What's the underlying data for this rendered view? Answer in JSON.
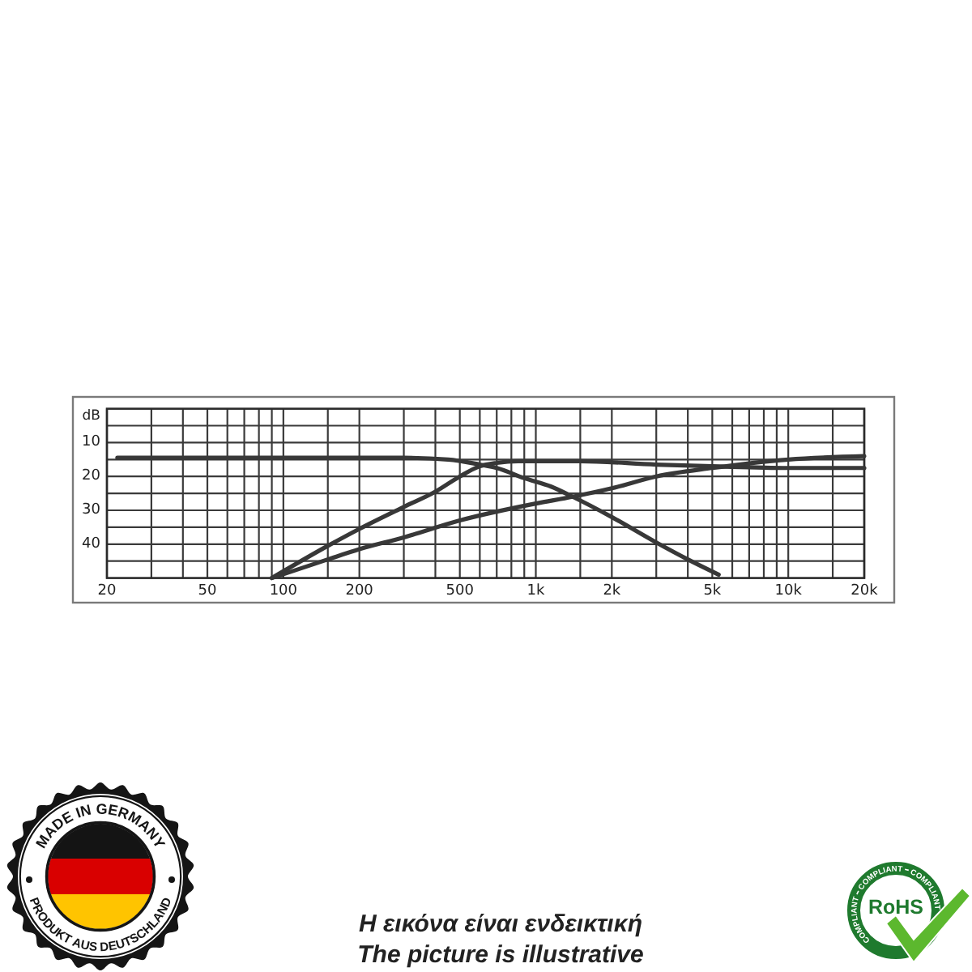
{
  "chart_data": {
    "type": "line",
    "ylabel": "dB",
    "log": "x",
    "grid": true,
    "line_style": "solid",
    "xlim": [
      20,
      20000
    ],
    "ylim": [
      50,
      0
    ],
    "xticks": [
      20,
      {
        "value": 30,
        "label": null
      },
      {
        "value": 40,
        "label": null
      },
      50,
      {
        "value": 60,
        "label": null
      },
      {
        "value": 70,
        "label": null
      },
      {
        "value": 80,
        "label": null
      },
      {
        "value": 90,
        "label": null
      },
      100,
      {
        "value": 150,
        "label": null
      },
      200,
      {
        "value": 300,
        "label": null
      },
      {
        "value": 400,
        "label": null
      },
      500,
      {
        "value": 600,
        "label": null
      },
      {
        "value": 700,
        "label": null
      },
      {
        "value": 800,
        "label": null
      },
      {
        "value": 900,
        "label": null
      },
      {
        "value": 1000,
        "label": "1k"
      },
      {
        "value": 1500,
        "label": null
      },
      {
        "value": 2000,
        "label": "2k"
      },
      {
        "value": 3000,
        "label": null
      },
      {
        "value": 4000,
        "label": null
      },
      {
        "value": 5000,
        "label": "5k"
      },
      {
        "value": 6000,
        "label": null
      },
      {
        "value": 7000,
        "label": null
      },
      {
        "value": 8000,
        "label": null
      },
      {
        "value": 9000,
        "label": null
      },
      {
        "value": 10000,
        "label": "10k"
      },
      {
        "value": 15000,
        "label": null
      },
      {
        "value": 20000,
        "label": "20k"
      }
    ],
    "yticks": [
      {
        "value": 5,
        "label": null
      },
      10,
      {
        "value": 15,
        "label": null
      },
      20,
      {
        "value": 25,
        "label": null
      },
      30,
      {
        "value": 35,
        "label": null
      },
      40,
      {
        "value": 45,
        "label": null
      }
    ],
    "series": [
      {
        "color": "#383838",
        "x": [
          22,
          300,
          450,
          600,
          700,
          900,
          1150,
          1400,
          2000,
          3000,
          4000,
          5300
        ],
        "values": [
          14.5,
          14.5,
          15,
          16.5,
          17.5,
          20.5,
          23,
          26,
          32,
          39.5,
          44.5,
          49
        ]
      },
      {
        "color": "#383838",
        "x": [
          90,
          150,
          200,
          300,
          400,
          500,
          600,
          700,
          850,
          1500,
          3000,
          5000,
          10000,
          20000
        ],
        "values": [
          50,
          40.5,
          35.5,
          29,
          24.5,
          20,
          17,
          16,
          15.5,
          15.5,
          16.5,
          17,
          17.5,
          17.5
        ]
      },
      {
        "color": "#383838",
        "x": [
          90,
          150,
          200,
          300,
          500,
          1000,
          1400,
          2000,
          3000,
          5000,
          10000,
          20000
        ],
        "values": [
          50,
          44.5,
          41.5,
          38,
          33,
          28,
          26,
          23.5,
          20,
          17.5,
          15,
          14
        ]
      }
    ],
    "annotations": [
      "MADE IN GERMANY",
      "PRODUKT AUS DEUTSCHLAND",
      "RoHS",
      "COMPLIANT",
      "COMPLIANT",
      "COMPLIANT",
      "Η εικόνα είναι ενδεικτική",
      "The picture is illustrative"
    ]
  }
}
